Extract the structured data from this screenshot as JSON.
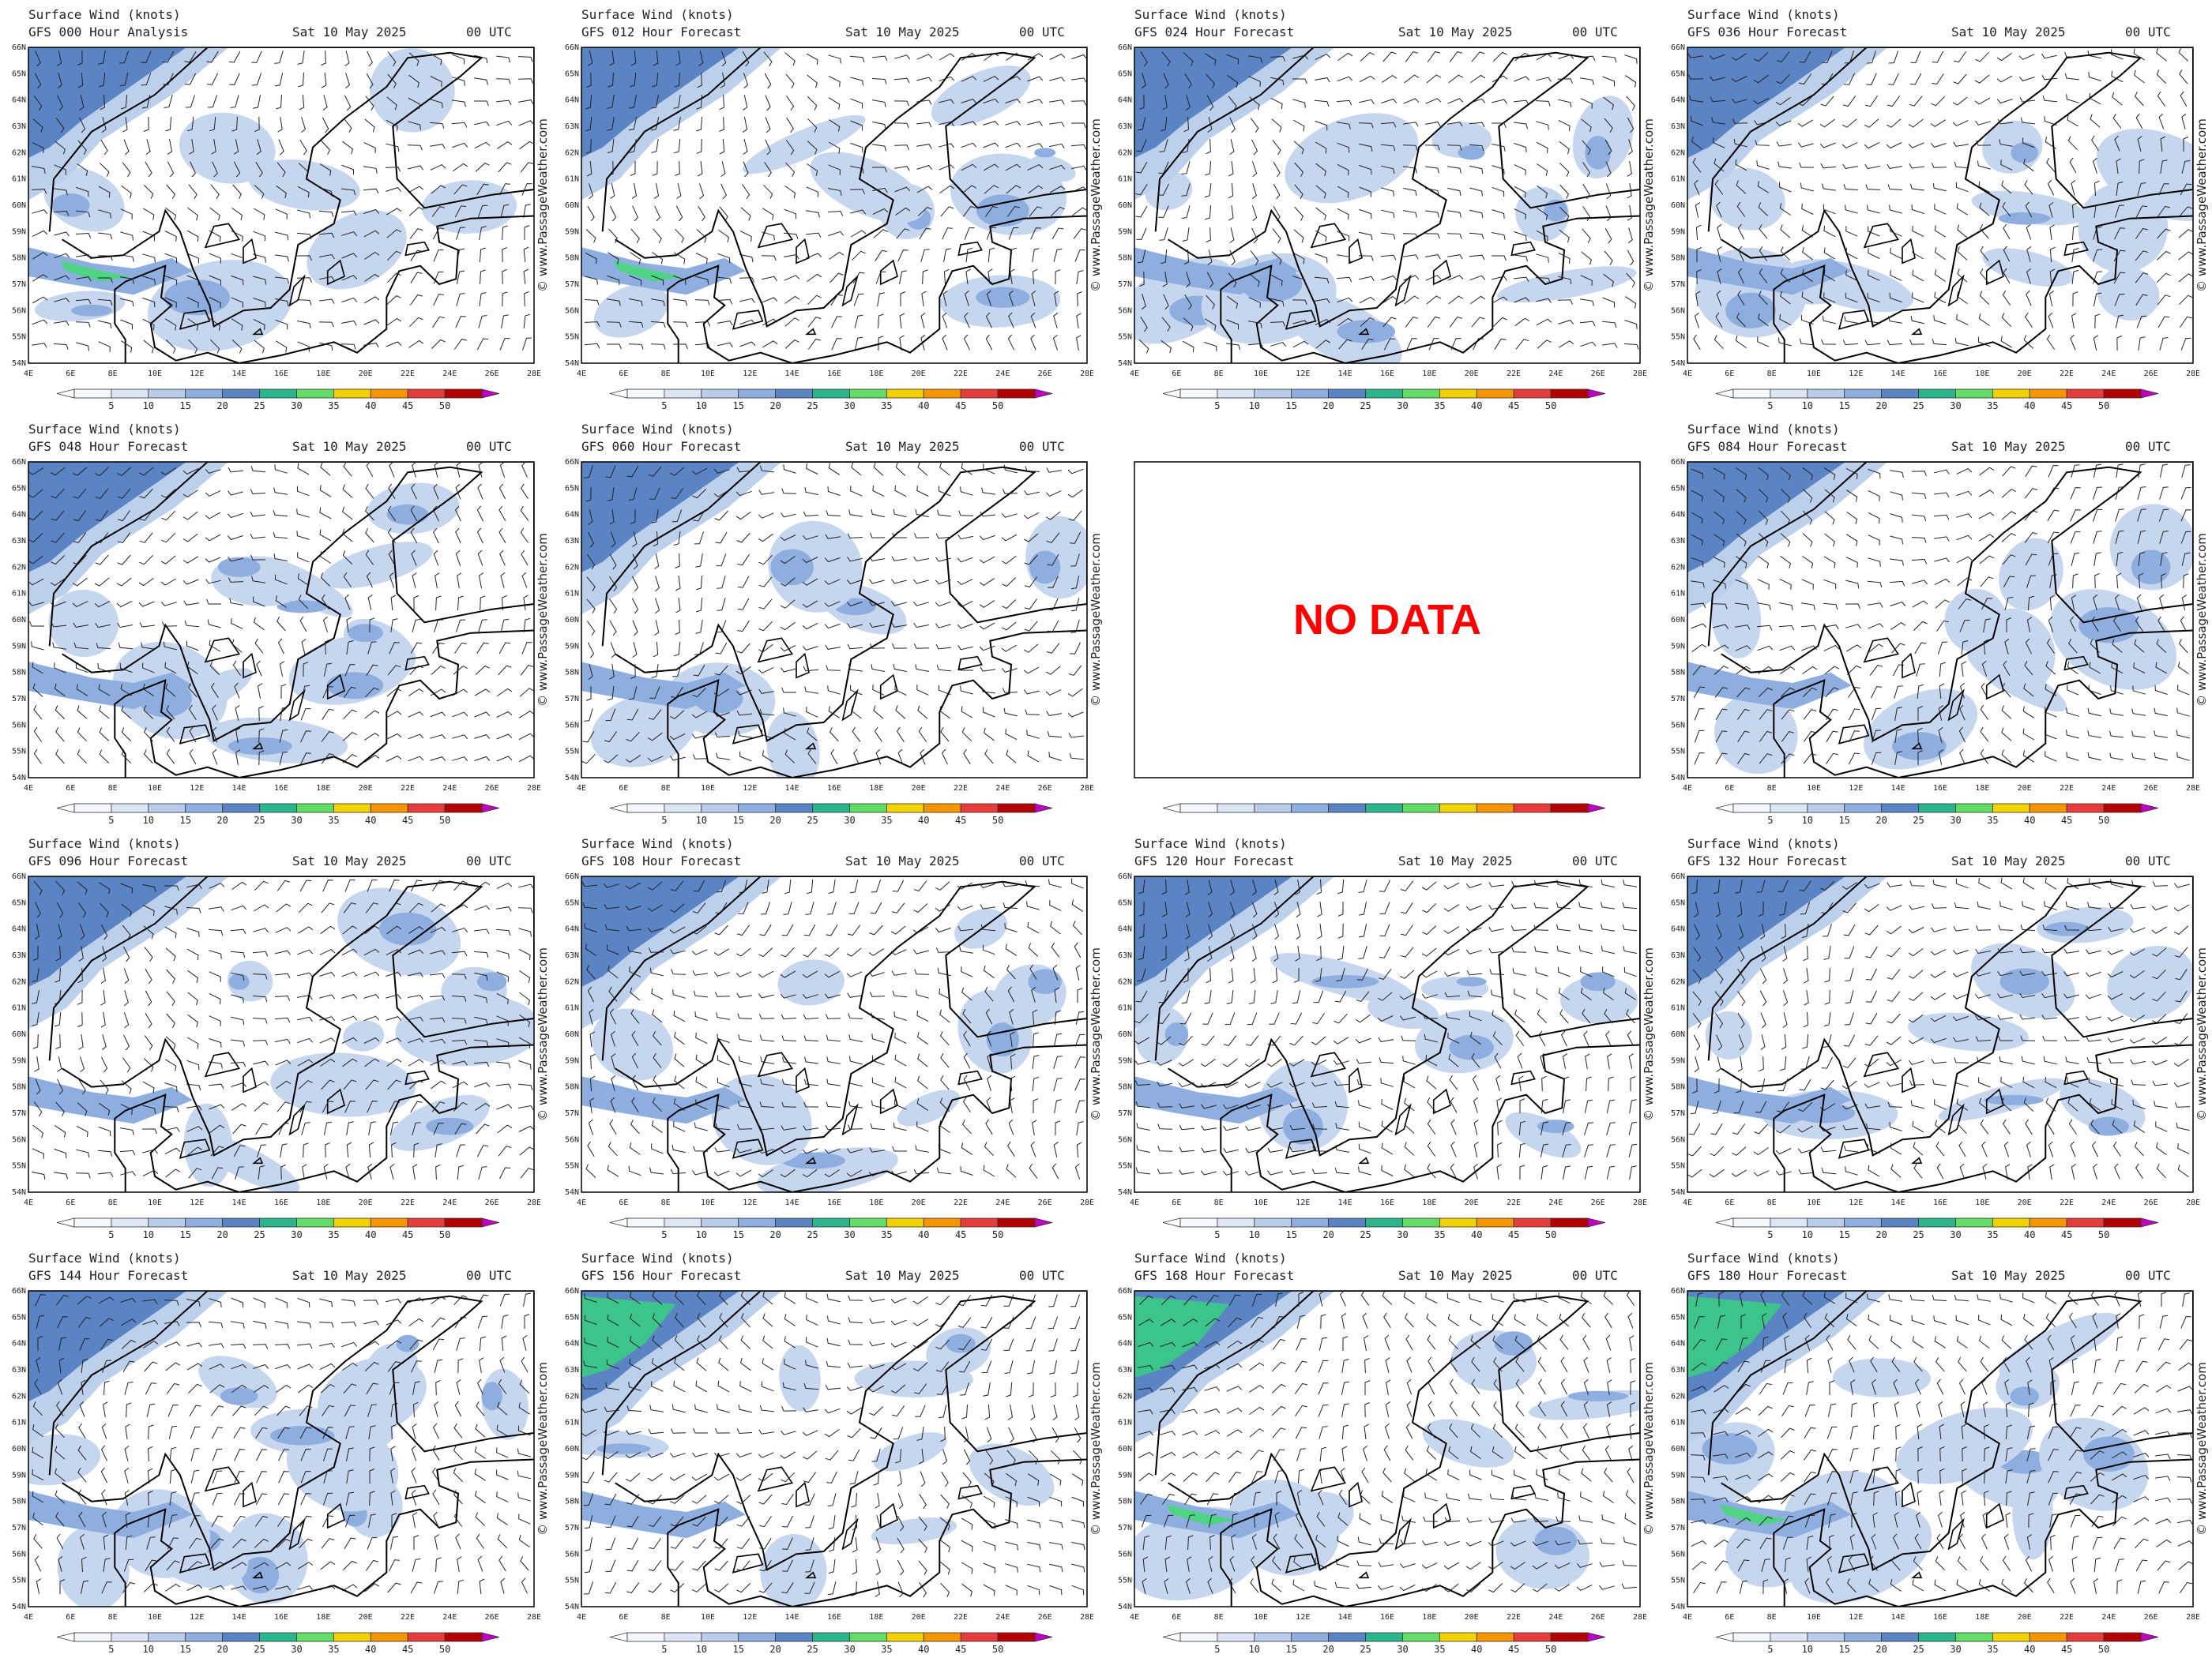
{
  "panels": [
    {
      "title": "Surface Wind (knots)",
      "subtitle": "GFS 000 Hour Analysis",
      "date": "Sat 10 May 2025",
      "time": "00 UTC"
    },
    {
      "title": "Surface Wind (knots)",
      "subtitle": "GFS 012 Hour Forecast",
      "date": "Sat 10 May 2025",
      "time": "00 UTC"
    },
    {
      "title": "Surface Wind (knots)",
      "subtitle": "GFS 024 Hour Forecast",
      "date": "Sat 10 May 2025",
      "time": "00 UTC"
    },
    {
      "title": "Surface Wind (knots)",
      "subtitle": "GFS 036 Hour Forecast",
      "date": "Sat 10 May 2025",
      "time": "00 UTC"
    },
    {
      "title": "Surface Wind (knots)",
      "subtitle": "GFS 048 Hour Forecast",
      "date": "Sat 10 May 2025",
      "time": "00 UTC"
    },
    {
      "title": "Surface Wind (knots)",
      "subtitle": "GFS 060 Hour Forecast",
      "date": "Sat 10 May 2025",
      "time": "00 UTC"
    },
    {
      "message": "NO DATA"
    },
    {
      "title": "Surface Wind (knots)",
      "subtitle": "GFS 084 Hour Forecast",
      "date": "Sat 10 May 2025",
      "time": "00 UTC"
    },
    {
      "title": "Surface Wind (knots)",
      "subtitle": "GFS 096 Hour Forecast",
      "date": "Sat 10 May 2025",
      "time": "00 UTC"
    },
    {
      "title": "Surface Wind (knots)",
      "subtitle": "GFS 108 Hour Forecast",
      "date": "Sat 10 May 2025",
      "time": "00 UTC"
    },
    {
      "title": "Surface Wind (knots)",
      "subtitle": "GFS 120 Hour Forecast",
      "date": "Sat 10 May 2025",
      "time": "00 UTC"
    },
    {
      "title": "Surface Wind (knots)",
      "subtitle": "GFS 132 Hour Forecast",
      "date": "Sat 10 May 2025",
      "time": "00 UTC"
    },
    {
      "title": "Surface Wind (knots)",
      "subtitle": "GFS 144 Hour Forecast",
      "date": "Sat 10 May 2025",
      "time": "00 UTC"
    },
    {
      "title": "Surface Wind (knots)",
      "subtitle": "GFS 156 Hour Forecast",
      "date": "Sat 10 May 2025",
      "time": "00 UTC"
    },
    {
      "title": "Surface Wind (knots)",
      "subtitle": "GFS 168 Hour Forecast",
      "date": "Sat 10 May 2025",
      "time": "00 UTC"
    },
    {
      "title": "Surface Wind (knots)",
      "subtitle": "GFS 180 Hour Forecast",
      "date": "Sat 10 May 2025",
      "time": "00 UTC"
    }
  ],
  "lat_labels": [
    "54N",
    "55N",
    "56N",
    "57N",
    "58N",
    "59N",
    "60N",
    "61N",
    "62N",
    "63N",
    "64N",
    "65N",
    "66N"
  ],
  "lon_labels": [
    "4E",
    "6E",
    "8E",
    "10E",
    "12E",
    "14E",
    "16E",
    "18E",
    "20E",
    "22E",
    "24E",
    "26E",
    "28E"
  ],
  "colorbar_labels": [
    "5",
    "10",
    "15",
    "20",
    "25",
    "30",
    "35",
    "40",
    "45",
    "50"
  ],
  "watermark": "© www.PassageWeather.com"
}
